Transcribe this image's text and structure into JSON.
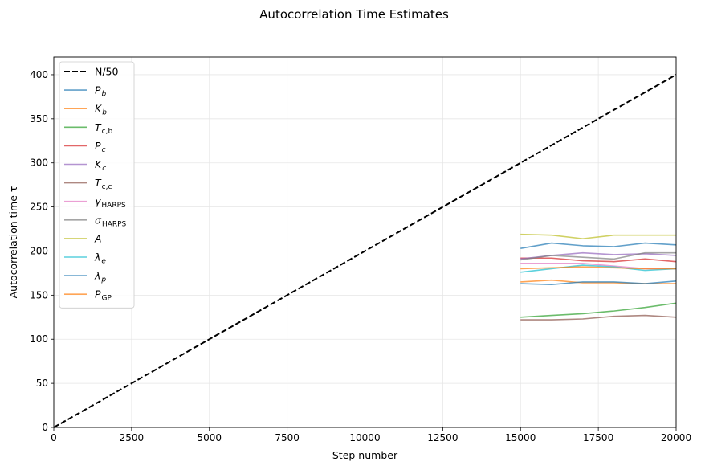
{
  "chart_data": {
    "type": "line",
    "title": "Autocorrelation Time Estimates",
    "xlabel": "Step number",
    "ylabel": "Autocorrelation time τ",
    "xlim": [
      0,
      20000
    ],
    "ylim": [
      0,
      420
    ],
    "xticks": [
      0,
      2500,
      5000,
      7500,
      10000,
      12500,
      15000,
      17500,
      20000
    ],
    "yticks": [
      0,
      50,
      100,
      150,
      200,
      250,
      300,
      350,
      400
    ],
    "grid": true,
    "legend_position": "upper-left",
    "reference": {
      "name": "N/50",
      "x": [
        0,
        20000
      ],
      "y": [
        0,
        400
      ],
      "color": "#000000",
      "style": "dashed"
    },
    "x": [
      15000,
      16000,
      17000,
      18000,
      19000,
      20000
    ],
    "series": [
      {
        "name": {
          "base": "P",
          "sub": "b",
          "sub_italic": true
        },
        "color": "#1f77b4",
        "values": [
          203,
          209,
          206,
          205,
          209,
          207
        ]
      },
      {
        "name": {
          "base": "K",
          "sub": "b",
          "sub_italic": true
        },
        "color": "#ff7f0e",
        "values": [
          165,
          167,
          164,
          164,
          163,
          163
        ]
      },
      {
        "name": {
          "base": "T",
          "sub": "c,b",
          "sub_italic": false
        },
        "color": "#2ca02c",
        "values": [
          125,
          127,
          129,
          132,
          136,
          141
        ]
      },
      {
        "name": {
          "base": "P",
          "sub": "c",
          "sub_italic": true
        },
        "color": "#d62728",
        "values": [
          192,
          192,
          189,
          188,
          191,
          188
        ]
      },
      {
        "name": {
          "base": "K",
          "sub": "c",
          "sub_italic": true
        },
        "color": "#9467bd",
        "values": [
          191,
          195,
          198,
          196,
          197,
          195
        ]
      },
      {
        "name": {
          "base": "T",
          "sub": "c,c",
          "sub_italic": false
        },
        "color": "#8c564b",
        "values": [
          122,
          122,
          123,
          126,
          127,
          125
        ]
      },
      {
        "name": {
          "base": "γ",
          "sub": "HARPS",
          "sub_italic": false
        },
        "color": "#e377c2",
        "values": [
          186,
          186,
          186,
          183,
          180,
          180
        ]
      },
      {
        "name": {
          "base": "σ",
          "sub": "HARPS",
          "sub_italic": false
        },
        "color": "#7f7f7f",
        "values": [
          190,
          195,
          193,
          191,
          198,
          198
        ]
      },
      {
        "name": {
          "base": "A",
          "sub": "",
          "sub_italic": false
        },
        "color": "#bcbd22",
        "values": [
          219,
          218,
          214,
          218,
          218,
          218
        ]
      },
      {
        "name": {
          "base": "λ",
          "sub": "e",
          "sub_italic": true
        },
        "color": "#17becf",
        "values": [
          176,
          180,
          184,
          182,
          178,
          180
        ]
      },
      {
        "name": {
          "base": "λ",
          "sub": "p",
          "sub_italic": true
        },
        "color": "#1f77b4",
        "values": [
          163,
          162,
          165,
          165,
          163,
          166
        ]
      },
      {
        "name": {
          "base": "P",
          "sub": "GP",
          "sub_italic": false
        },
        "color": "#ff7f0e",
        "values": [
          180,
          181,
          182,
          181,
          180,
          180
        ]
      }
    ]
  }
}
